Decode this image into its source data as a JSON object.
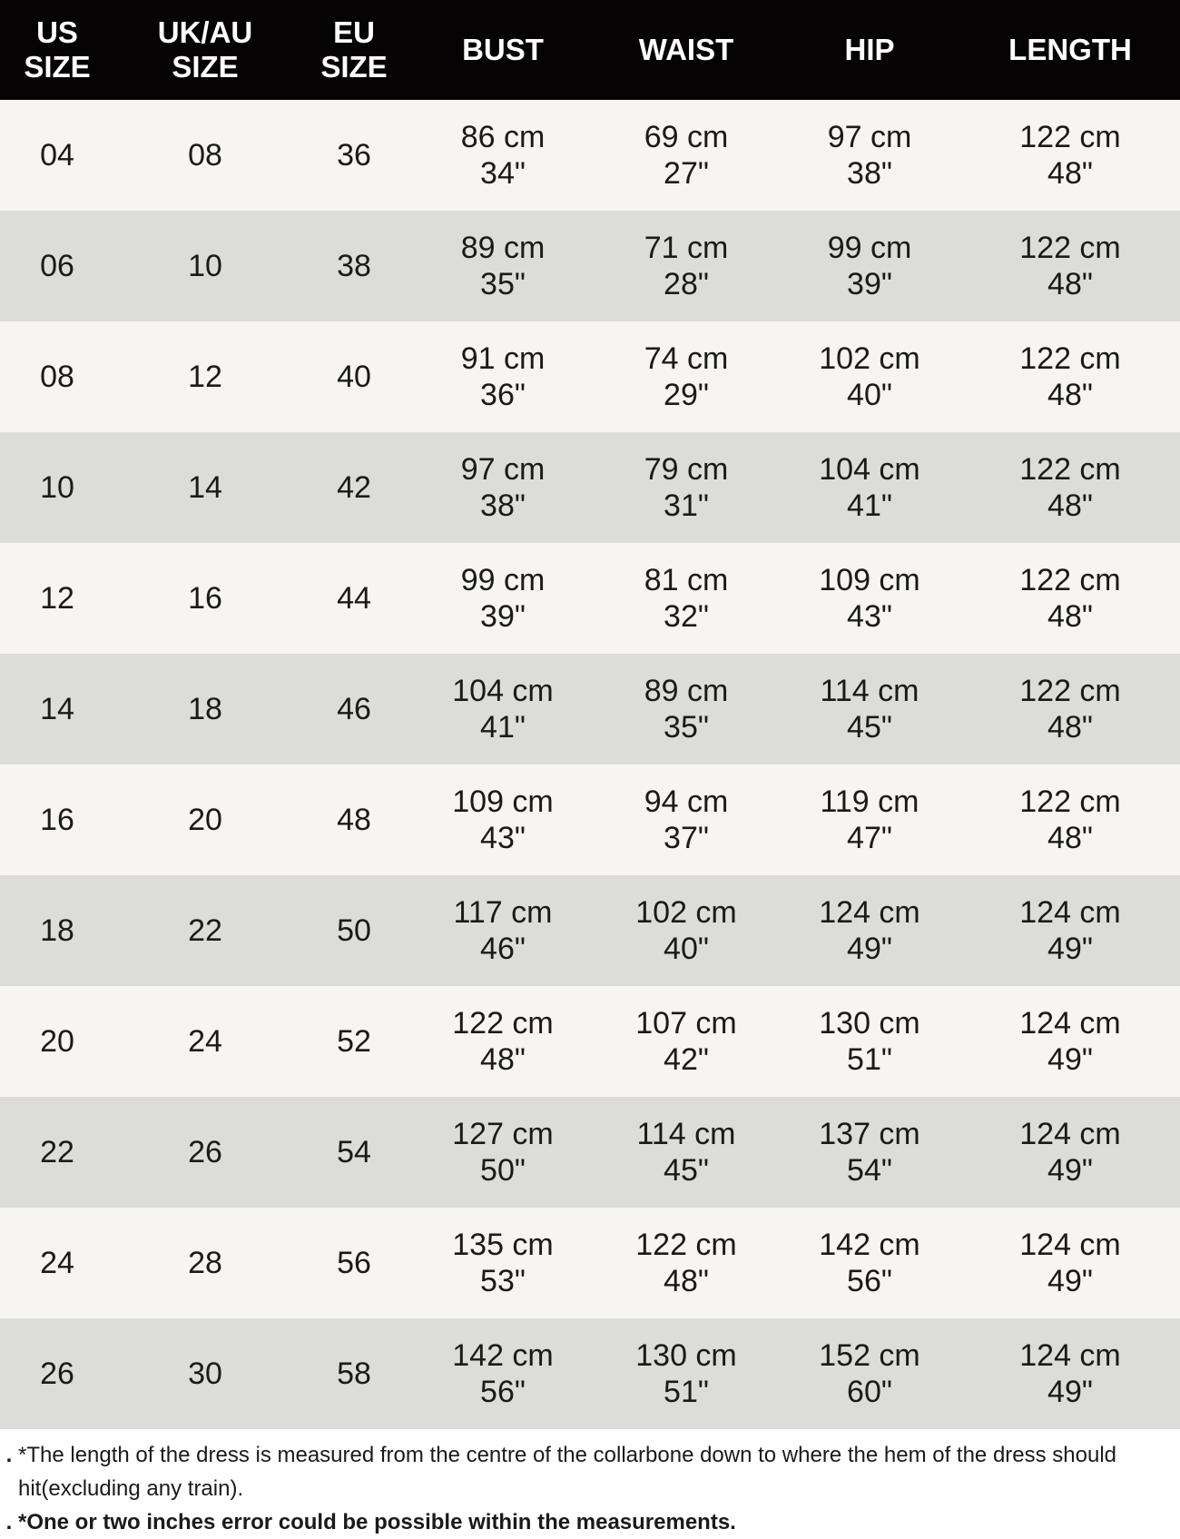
{
  "headers": [
    [
      "US",
      "SIZE"
    ],
    [
      "UK/AU",
      "SIZE"
    ],
    [
      "EU",
      "SIZE"
    ],
    [
      "BUST"
    ],
    [
      "WAIST"
    ],
    [
      "HIP"
    ],
    [
      "LENGTH"
    ]
  ],
  "rows": [
    {
      "us": "04",
      "uk": "08",
      "eu": "36",
      "bust": [
        "86 cm",
        "34\""
      ],
      "waist": [
        "69 cm",
        "27\""
      ],
      "hip": [
        "97 cm",
        "38\""
      ],
      "length": [
        "122 cm",
        "48\""
      ]
    },
    {
      "us": "06",
      "uk": "10",
      "eu": "38",
      "bust": [
        "89 cm",
        "35\""
      ],
      "waist": [
        "71 cm",
        "28\""
      ],
      "hip": [
        "99 cm",
        "39\""
      ],
      "length": [
        "122 cm",
        "48\""
      ]
    },
    {
      "us": "08",
      "uk": "12",
      "eu": "40",
      "bust": [
        "91 cm",
        "36\""
      ],
      "waist": [
        "74 cm",
        "29\""
      ],
      "hip": [
        "102 cm",
        "40\""
      ],
      "length": [
        "122 cm",
        "48\""
      ]
    },
    {
      "us": "10",
      "uk": "14",
      "eu": "42",
      "bust": [
        "97 cm",
        "38\""
      ],
      "waist": [
        "79 cm",
        "31\""
      ],
      "hip": [
        "104 cm",
        "41\""
      ],
      "length": [
        "122 cm",
        "48\""
      ]
    },
    {
      "us": "12",
      "uk": "16",
      "eu": "44",
      "bust": [
        "99 cm",
        "39\""
      ],
      "waist": [
        "81 cm",
        "32\""
      ],
      "hip": [
        "109 cm",
        "43\""
      ],
      "length": [
        "122 cm",
        "48\""
      ]
    },
    {
      "us": "14",
      "uk": "18",
      "eu": "46",
      "bust": [
        "104 cm",
        "41\""
      ],
      "waist": [
        "89 cm",
        "35\""
      ],
      "hip": [
        "114 cm",
        "45\""
      ],
      "length": [
        "122 cm",
        "48\""
      ]
    },
    {
      "us": "16",
      "uk": "20",
      "eu": "48",
      "bust": [
        "109 cm",
        "43\""
      ],
      "waist": [
        "94 cm",
        "37\""
      ],
      "hip": [
        "119 cm",
        "47\""
      ],
      "length": [
        "122 cm",
        "48\""
      ]
    },
    {
      "us": "18",
      "uk": "22",
      "eu": "50",
      "bust": [
        "117 cm",
        "46\""
      ],
      "waist": [
        "102 cm",
        "40\""
      ],
      "hip": [
        "124 cm",
        "49\""
      ],
      "length": [
        "124 cm",
        "49\""
      ]
    },
    {
      "us": "20",
      "uk": "24",
      "eu": "52",
      "bust": [
        "122 cm",
        "48\""
      ],
      "waist": [
        "107 cm",
        "42\""
      ],
      "hip": [
        "130 cm",
        "51\""
      ],
      "length": [
        "124 cm",
        "49\""
      ]
    },
    {
      "us": "22",
      "uk": "26",
      "eu": "54",
      "bust": [
        "127 cm",
        "50\""
      ],
      "waist": [
        "114 cm",
        "45\""
      ],
      "hip": [
        "137 cm",
        "54\""
      ],
      "length": [
        "124 cm",
        "49\""
      ]
    },
    {
      "us": "24",
      "uk": "28",
      "eu": "56",
      "bust": [
        "135 cm",
        "53\""
      ],
      "waist": [
        "122 cm",
        "48\""
      ],
      "hip": [
        "142 cm",
        "56\""
      ],
      "length": [
        "124 cm",
        "49\""
      ]
    },
    {
      "us": "26",
      "uk": "30",
      "eu": "58",
      "bust": [
        "142 cm",
        "56\""
      ],
      "waist": [
        "130 cm",
        "51\""
      ],
      "hip": [
        "152 cm",
        "60\""
      ],
      "length": [
        "124 cm",
        "49\""
      ]
    }
  ],
  "notes": [
    {
      "bullet": ".",
      "text": "*The length of the dress is measured from the centre of the collarbone down to where the hem of the dress should hit(excluding any train).",
      "bold": false
    },
    {
      "bullet": ".",
      "text": "*One or two inches error could be possible within the measurements.",
      "bold": true
    }
  ],
  "colors": {
    "header_bg": "#050303",
    "row_light": "#f6f5f3",
    "row_dark": "#dcdcda"
  }
}
